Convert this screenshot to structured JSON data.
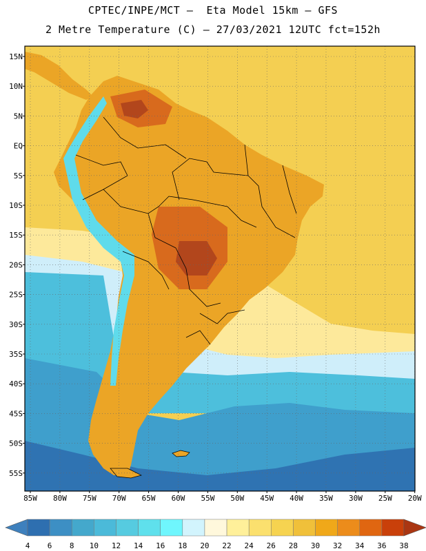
{
  "header": {
    "line1": "CPTEC/INPE/MCT –  Eta Model 15km – GFS",
    "line2": "2 Metre Temperature (C) – 27/03/2021 12UTC fct=152h"
  },
  "axes": {
    "lat_labels": [
      "15N",
      "10N",
      "5N",
      "EQ",
      "5S",
      "10S",
      "15S",
      "20S",
      "25S",
      "30S",
      "35S",
      "40S",
      "45S",
      "50S",
      "55S"
    ],
    "lon_labels": [
      "85W",
      "80W",
      "75W",
      "70W",
      "65W",
      "60W",
      "55W",
      "50W",
      "45W",
      "40W",
      "35W",
      "30W",
      "25W",
      "20W"
    ]
  },
  "colorbar": {
    "levels": [
      "4",
      "6",
      "8",
      "10",
      "12",
      "14",
      "16",
      "18",
      "20",
      "22",
      "24",
      "26",
      "28",
      "30",
      "32",
      "34",
      "36",
      "38"
    ],
    "colors": [
      "#3e80bd",
      "#2e6fb0",
      "#3d8fc4",
      "#44a8cc",
      "#4bbad9",
      "#56cbe0",
      "#5fe0ec",
      "#6ff6fd",
      "#d2f4fd",
      "#fff8dc",
      "#fff09a",
      "#fbe06e",
      "#f6d350",
      "#f0c03a",
      "#f0a819",
      "#ec8c1b",
      "#e06611",
      "#c9400a",
      "#aa3612"
    ]
  },
  "palette": {
    "ocean_warm": "#f4cf52",
    "ocean_mild": "#fde99b",
    "ocean_cool": "#cfeefa",
    "ocean_cold": "#4dbfdc",
    "ocean_colder": "#3f9fcc",
    "ocean_deep": "#2f73b2",
    "land_hot": "#eba526",
    "land_hotter": "#d86a1d",
    "land_hottest": "#b2461c",
    "andes": "#5fdbeb",
    "border": "#000000"
  }
}
